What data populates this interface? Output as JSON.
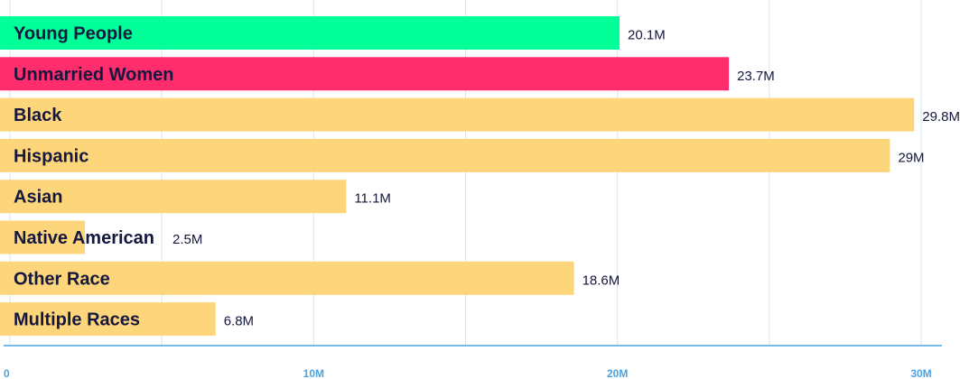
{
  "chart_data": {
    "type": "bar",
    "orientation": "horizontal",
    "categories": [
      "Young People",
      "Unmarried Women",
      "Black",
      "Hispanic",
      "Asian",
      "Native American",
      "Other Race",
      "Multiple Races"
    ],
    "values": [
      20.1,
      23.7,
      29.8,
      29,
      11.1,
      2.5,
      18.6,
      6.8
    ],
    "value_labels": [
      "20.1M",
      "23.7M",
      "29.8M",
      "29M",
      "11.1M",
      "2.5M",
      "18.6M",
      "6.8M"
    ],
    "bar_colors": [
      "#00ff99",
      "#ff2d6e",
      "#fdd57a",
      "#fdd57a",
      "#fdd57a",
      "#fdd57a",
      "#fdd57a",
      "#fdd57a"
    ],
    "xlim": [
      0,
      30
    ],
    "x_ticks": [
      0,
      10,
      20,
      30
    ],
    "x_tick_labels": [
      "0",
      "10M",
      "20M",
      "30M"
    ],
    "title": "",
    "xlabel": "",
    "ylabel": "",
    "grid": true,
    "colors": {
      "label_text": "#14173e",
      "value_text": "#14173e",
      "tick_text": "#4aa3df",
      "axis_line": "#4aa3df",
      "grid_line": "#d2e6f4"
    }
  }
}
